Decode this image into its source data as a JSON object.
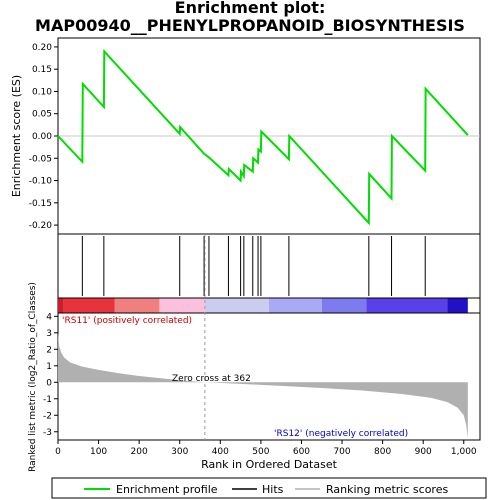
{
  "chart_data": {
    "type": "line",
    "title_line1": "Enrichment plot:",
    "title_line2": "MAP00940__PHENYLPROPANOID_BIOSYNTHESIS",
    "es_panel": {
      "ylabel": "Enrichment score (ES)",
      "ylim": [
        -0.22,
        0.22
      ],
      "yticks": [
        "0.20",
        "0.15",
        "0.10",
        "0.05",
        "0.00",
        "-0.05",
        "-0.10",
        "-0.15",
        "-0.20"
      ],
      "ytick_values": [
        0.2,
        0.15,
        0.1,
        0.05,
        0.0,
        -0.05,
        -0.1,
        -0.15,
        -0.2
      ],
      "line_color": "#00dd00",
      "points": [
        [
          0,
          0.0
        ],
        [
          60,
          -0.058
        ],
        [
          61,
          0.117
        ],
        [
          113,
          0.065
        ],
        [
          114,
          0.19
        ],
        [
          300,
          0.005
        ],
        [
          301,
          0.02
        ],
        [
          360,
          -0.04
        ],
        [
          372,
          -0.048
        ],
        [
          420,
          -0.088
        ],
        [
          421,
          -0.074
        ],
        [
          450,
          -0.1
        ],
        [
          451,
          -0.08
        ],
        [
          458,
          -0.09
        ],
        [
          459,
          -0.065
        ],
        [
          480,
          -0.08
        ],
        [
          481,
          -0.05
        ],
        [
          493,
          -0.06
        ],
        [
          494,
          -0.03
        ],
        [
          500,
          -0.035
        ],
        [
          501,
          0.01
        ],
        [
          569,
          -0.052
        ],
        [
          570,
          0.0
        ],
        [
          766,
          -0.195
        ],
        [
          767,
          -0.085
        ],
        [
          822,
          -0.14
        ],
        [
          823,
          0.0
        ],
        [
          905,
          -0.078
        ],
        [
          906,
          0.106
        ],
        [
          1010,
          0.002
        ]
      ]
    },
    "hits_panel": {
      "hit_positions": [
        60,
        113,
        300,
        360,
        372,
        420,
        450,
        458,
        480,
        493,
        500,
        569,
        766,
        822,
        905
      ],
      "bar_colors": [
        "#e8323c",
        "#f08080",
        "#fbc0dc",
        "#ccccf0",
        "#aaaaf4",
        "#7c7cf0",
        "#5a40e8",
        "#2010c8"
      ],
      "bar_boundaries": [
        0,
        140,
        250,
        362,
        520,
        650,
        760,
        960,
        1010
      ]
    },
    "rank_panel": {
      "ylabel": "Ranked list metric (log2_Ratio_of_Classes)",
      "ylim": [
        -3.5,
        4.2
      ],
      "yticks": [
        "4",
        "3",
        "2",
        "1",
        "0",
        "-1",
        "-2",
        "-3"
      ],
      "ytick_values": [
        4,
        3,
        2,
        1,
        0,
        -1,
        -2,
        -3
      ],
      "label_pos": "'RS11' (positively correlated)",
      "label_neg": "'RS12' (negatively correlated)",
      "zero_cross_text": "Zero cross at 362",
      "zero_cross": 362,
      "fill_color": "#b0b0b0",
      "curve": [
        [
          0,
          3.0
        ],
        [
          3,
          2.2
        ],
        [
          8,
          1.8
        ],
        [
          15,
          1.5
        ],
        [
          30,
          1.2
        ],
        [
          60,
          0.95
        ],
        [
          100,
          0.75
        ],
        [
          150,
          0.55
        ],
        [
          200,
          0.38
        ],
        [
          250,
          0.25
        ],
        [
          300,
          0.12
        ],
        [
          362,
          0.0
        ],
        [
          450,
          -0.1
        ],
        [
          550,
          -0.22
        ],
        [
          650,
          -0.35
        ],
        [
          750,
          -0.5
        ],
        [
          850,
          -0.72
        ],
        [
          920,
          -0.95
        ],
        [
          960,
          -1.2
        ],
        [
          985,
          -1.55
        ],
        [
          1000,
          -2.0
        ],
        [
          1006,
          -2.6
        ],
        [
          1010,
          -3.4
        ]
      ]
    },
    "x_axis": {
      "xlabel": "Rank in Ordered Dataset",
      "xlim": [
        0,
        1040
      ],
      "xticks": [
        "0",
        "100",
        "200",
        "300",
        "400",
        "500",
        "600",
        "700",
        "800",
        "900",
        "1,000"
      ],
      "xtick_values": [
        0,
        100,
        200,
        300,
        400,
        500,
        600,
        700,
        800,
        900,
        1000
      ]
    },
    "legend": [
      {
        "label": "Enrichment profile",
        "color": "#00dd00"
      },
      {
        "label": "Hits",
        "color": "#000000"
      },
      {
        "label": "Ranking metric scores",
        "color": "#b0b0b0"
      }
    ]
  }
}
